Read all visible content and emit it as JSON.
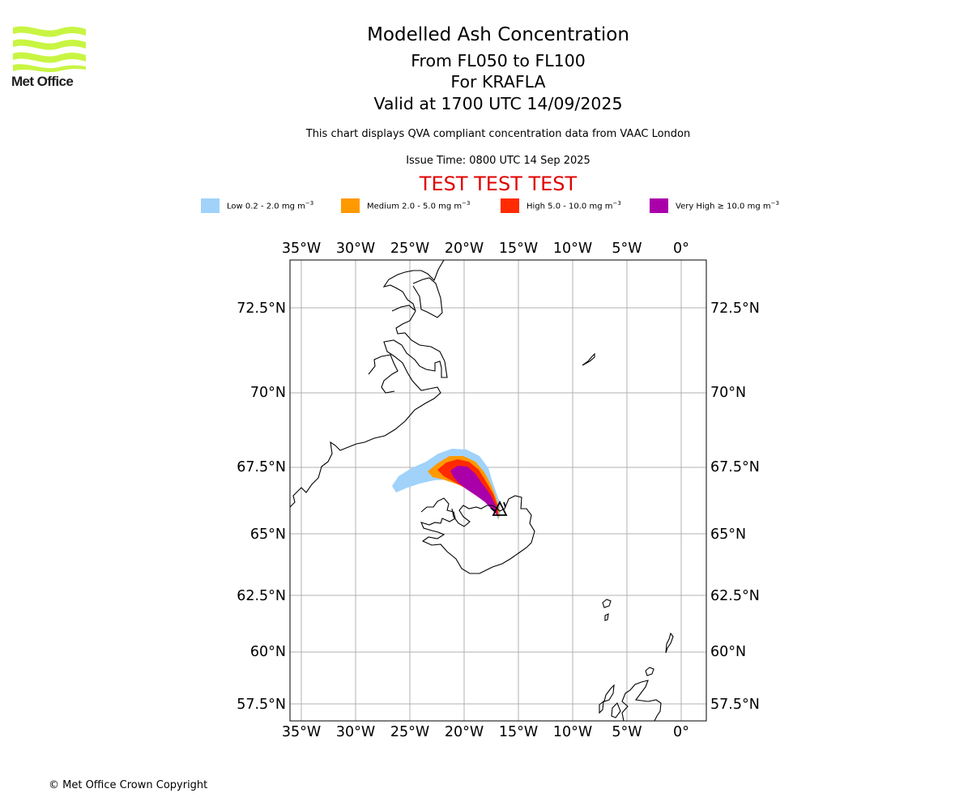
{
  "header": {
    "logo_text": "Met Office",
    "title": "Modelled Ash Concentration",
    "levels": "From FL050 to FL100",
    "volcano": "For KRAFLA",
    "valid": "Valid at 1700 UTC 14/09/2025",
    "description": "This chart displays QVA compliant concentration data from VAAC London",
    "issue_time": "Issue Time: 0800 UTC 14 Sep 2025",
    "test_banner": "TEST TEST TEST"
  },
  "legend": [
    {
      "name": "Low",
      "text": "Low 0.2 - 2.0 mg m",
      "sup": "−3",
      "color": "#a0d2fa"
    },
    {
      "name": "Medium",
      "text": "Medium 2.0 - 5.0 mg m",
      "sup": "−3",
      "color": "#ff9900"
    },
    {
      "name": "High",
      "text": "High 5.0 - 10.0 mg m",
      "sup": "−3",
      "color": "#ff2a00"
    },
    {
      "name": "Very High",
      "text": "Very High ≥ 10.0 mg m",
      "sup": "−3",
      "color": "#aa00aa"
    }
  ],
  "map": {
    "lon_ticks": [
      "35°W",
      "30°W",
      "25°W",
      "20°W",
      "15°W",
      "10°W",
      "5°W",
      "0°"
    ],
    "lat_ticks": [
      "72.5°N",
      "70°N",
      "67.5°N",
      "65°N",
      "62.5°N",
      "60°N",
      "57.5°N"
    ],
    "volcano_symbol": "volcano-triangle",
    "coastline_color": "#000000",
    "gridline_color": "#b0b0b0"
  },
  "footer": {
    "copyright": "© Met Office Crown Copyright"
  }
}
